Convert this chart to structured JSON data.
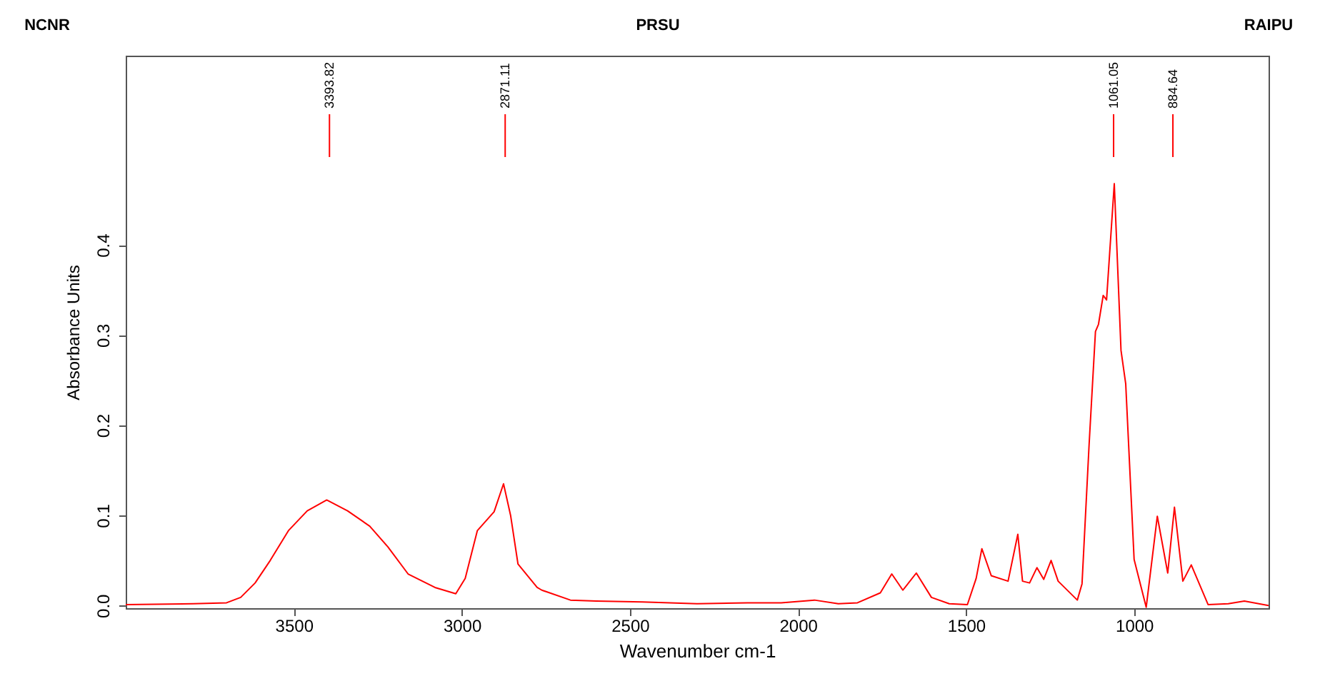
{
  "chart_data": {
    "type": "line",
    "xlabel": "Wavenumber cm-1",
    "ylabel": "Absorbance Units",
    "x": [
      4000,
      3800,
      3700,
      3658,
      3615,
      3570,
      3516,
      3460,
      3402,
      3340,
      3274,
      3220,
      3160,
      3080,
      3018,
      2990,
      2954,
      2904,
      2876,
      2855,
      2833,
      2776,
      2762,
      2677,
      2600,
      2463,
      2300,
      2150,
      2050,
      1951,
      1880,
      1823,
      1755,
      1721,
      1688,
      1648,
      1603,
      1550,
      1496,
      1470,
      1453,
      1425,
      1375,
      1346,
      1332,
      1311,
      1289,
      1269,
      1247,
      1226,
      1169,
      1155,
      1134,
      1115,
      1106,
      1092,
      1082,
      1059,
      1039,
      1025,
      1000,
      964,
      931,
      900,
      880,
      855,
      830,
      780,
      720,
      672,
      600
    ],
    "series": [
      {
        "color": "#ff0000",
        "values": [
          0.001,
          0.002,
          0.003,
          0.009,
          0.025,
          0.05,
          0.083,
          0.105,
          0.117,
          0.105,
          0.088,
          0.065,
          0.035,
          0.02,
          0.013,
          0.03,
          0.083,
          0.104,
          0.135,
          0.1,
          0.046,
          0.02,
          0.017,
          0.006,
          0.005,
          0.004,
          0.002,
          0.003,
          0.003,
          0.006,
          0.002,
          0.003,
          0.014,
          0.035,
          0.017,
          0.036,
          0.009,
          0.002,
          0.001,
          0.03,
          0.063,
          0.033,
          0.027,
          0.079,
          0.027,
          0.025,
          0.042,
          0.029,
          0.05,
          0.027,
          0.006,
          0.024,
          0.178,
          0.304,
          0.312,
          0.344,
          0.339,
          0.468,
          0.283,
          0.246,
          0.051,
          -0.002,
          0.099,
          0.036,
          0.109,
          0.027,
          0.045,
          0.001,
          0.002,
          0.005,
          0
        ]
      }
    ],
    "xlim": [
      4000,
      600
    ],
    "xticks": [
      3500,
      3000,
      2500,
      2000,
      1500,
      1000
    ],
    "ylim": [
      -0.003,
      0.61
    ],
    "yticks": [
      {
        "value": 0,
        "label": "0.0"
      },
      0.1,
      0.2,
      0.3,
      0.4
    ],
    "grid": false,
    "marker": "none",
    "line_style": "solid",
    "ref_lines": [
      {
        "axis": "x",
        "value": 3393.82,
        "label": "3393.82"
      },
      {
        "axis": "x",
        "value": 2871.11,
        "label": "2871.11"
      },
      {
        "axis": "x",
        "value": 1061.05,
        "label": "1061.05"
      },
      {
        "axis": "x",
        "value": 884.64,
        "label": "884.64"
      }
    ],
    "annotations": [
      "NCNR",
      "PRSU",
      "RAIPU"
    ]
  }
}
